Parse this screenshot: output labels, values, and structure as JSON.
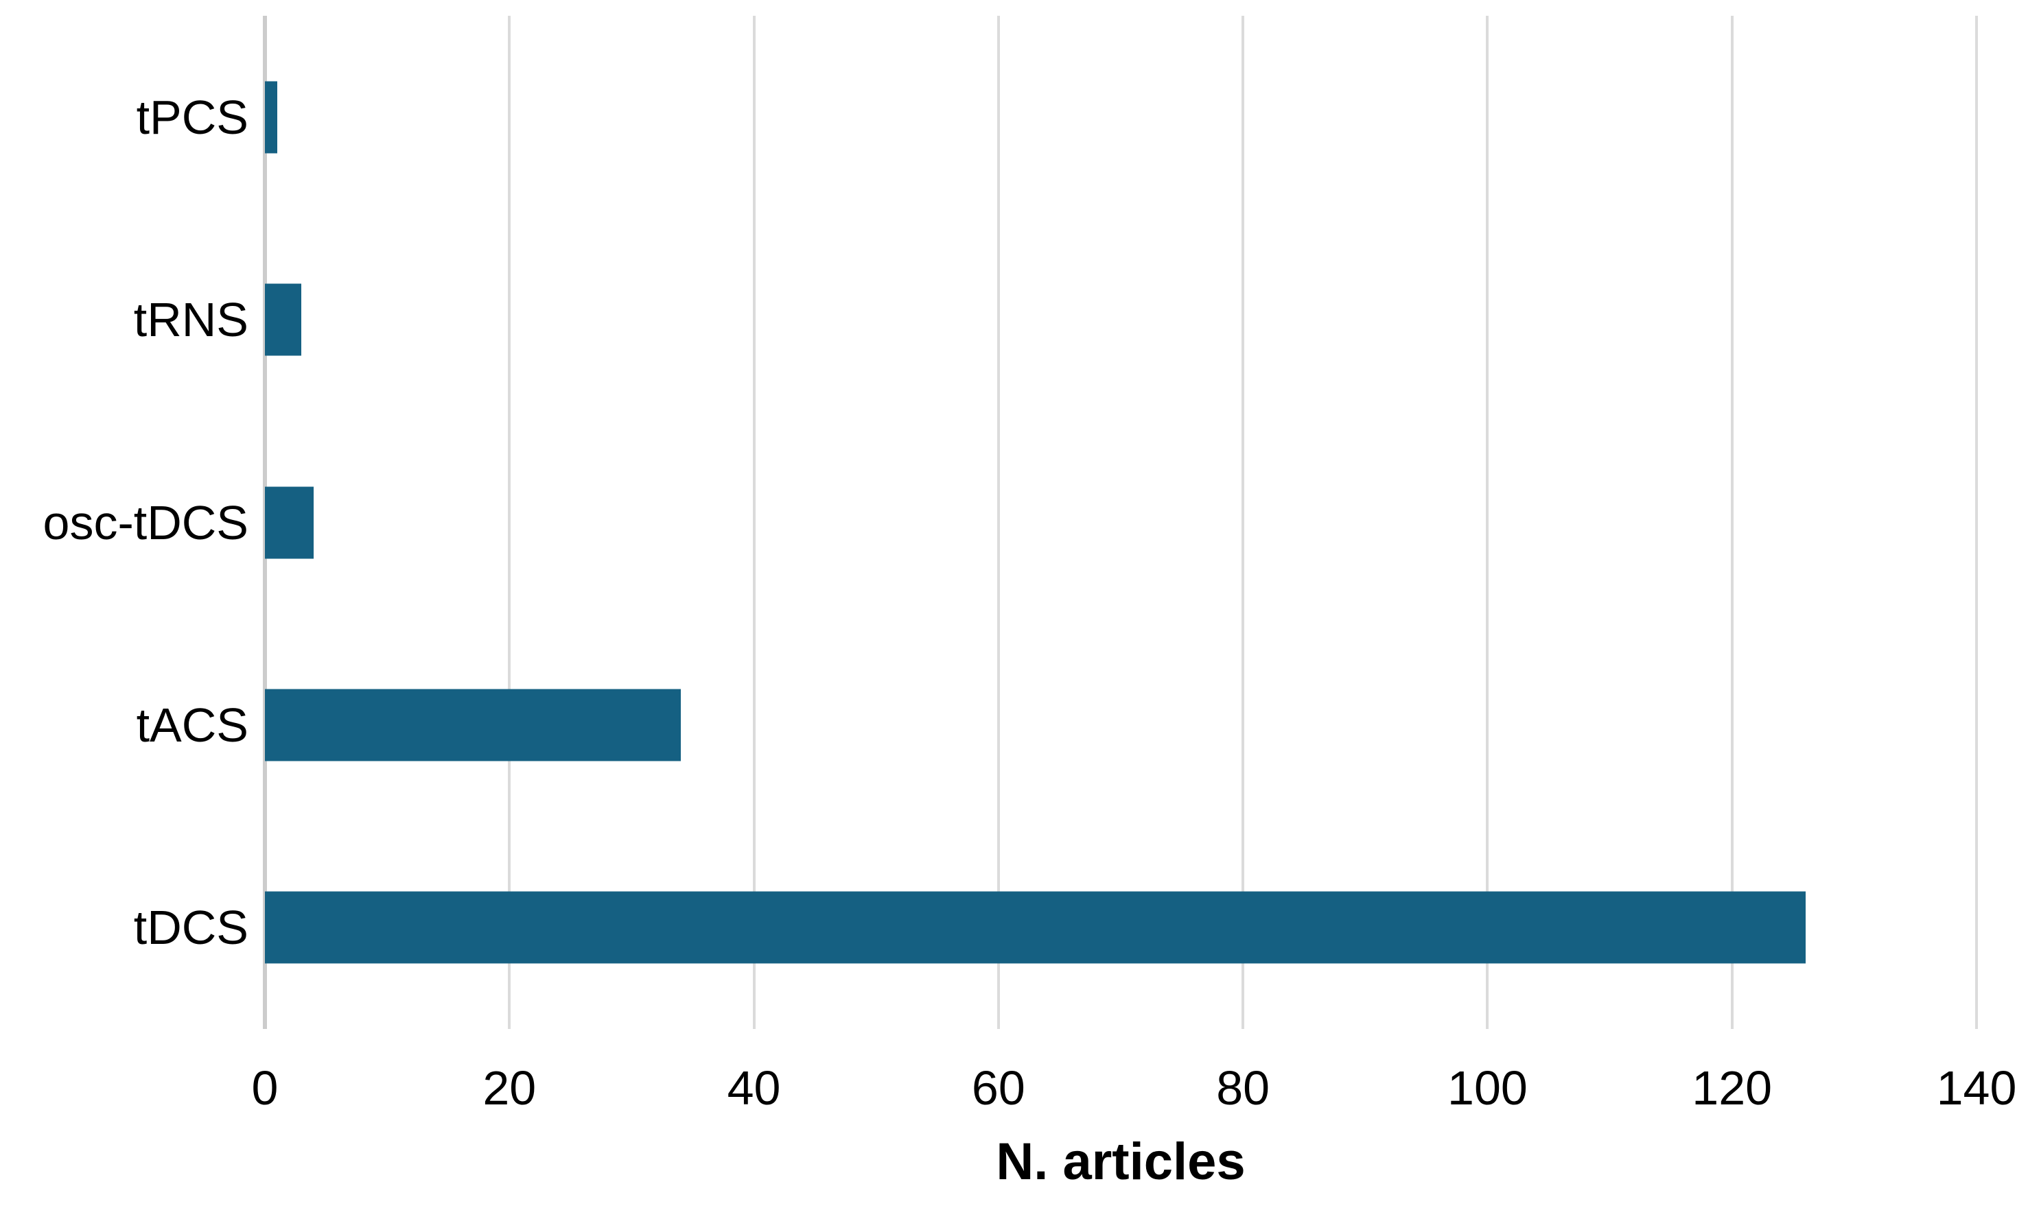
{
  "chart_data": {
    "type": "bar",
    "orientation": "horizontal",
    "title": "",
    "categories": [
      "tPCS",
      "tRNS",
      "osc-tDCS",
      "tACS",
      "tDCS"
    ],
    "values": [
      1,
      3,
      4,
      34,
      126
    ],
    "xlabel": "N. articles",
    "ylabel": "",
    "xlim": [
      0,
      140
    ],
    "xticks": [
      0,
      20,
      40,
      60,
      80,
      100,
      120,
      140
    ],
    "grid": "vertical-only",
    "legend": false,
    "colors": {
      "bar": "#156082",
      "gridline": "#dbdbdb",
      "zero_axis": "#cccccc",
      "text": "#000000",
      "background": "#ffffff"
    }
  }
}
